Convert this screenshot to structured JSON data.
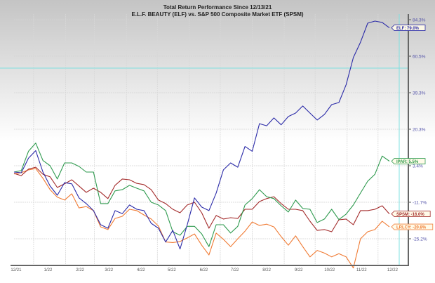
{
  "chart_data": {
    "type": "line",
    "title": "Total Return Performance Since 12/13/21",
    "subtitle": "E.L.F. BEAUTY (ELF)   vs.  S&P 500 Composite Market ETF (SPSM)",
    "y_scale": "nonlinear (evenly spaced ticks)",
    "y_ticks": [
      84.3,
      60.5,
      39.3,
      20.3,
      3.4,
      -11.7,
      -25.2
    ],
    "y_tick_labels": [
      "84.3%",
      "60.5%",
      "39.3%",
      "20.3%",
      "3.4%",
      "-11.7%",
      "-25.2%"
    ],
    "y_axis_side": "right",
    "x_tick_labels": [
      "12/21",
      "1/22",
      "2/22",
      "3/22",
      "4/22",
      "5/22",
      "6/22",
      "7/22",
      "8/22",
      "9/22",
      "10/22",
      "11/22",
      "12/22"
    ],
    "x_tick_months": [
      "2021-12",
      "2022-01",
      "2022-02",
      "2022-03",
      "2022-04",
      "2022-05",
      "2022-06",
      "2022-07",
      "2022-08",
      "2022-09",
      "2022-10",
      "2022-11",
      "2022-12"
    ],
    "grid": true,
    "legend": "end-of-line labels",
    "x": [
      "2021-12-13",
      "2021-12-20",
      "2021-12-27",
      "2022-01-03",
      "2022-01-10",
      "2022-01-17",
      "2022-01-24",
      "2022-01-31",
      "2022-02-07",
      "2022-02-14",
      "2022-02-21",
      "2022-02-28",
      "2022-03-07",
      "2022-03-14",
      "2022-03-21",
      "2022-03-28",
      "2022-04-04",
      "2022-04-11",
      "2022-04-18",
      "2022-04-25",
      "2022-05-02",
      "2022-05-09",
      "2022-05-16",
      "2022-05-23",
      "2022-05-30",
      "2022-06-06",
      "2022-06-13",
      "2022-06-20",
      "2022-06-27",
      "2022-07-04",
      "2022-07-11",
      "2022-07-18",
      "2022-07-25",
      "2022-08-01",
      "2022-08-08",
      "2022-08-15",
      "2022-08-22",
      "2022-08-29",
      "2022-09-05",
      "2022-09-12",
      "2022-09-19",
      "2022-09-26",
      "2022-10-03",
      "2022-10-10",
      "2022-10-17",
      "2022-10-24",
      "2022-10-31",
      "2022-11-07",
      "2022-11-14",
      "2022-11-21",
      "2022-11-28",
      "2022-12-05",
      "2022-12-12"
    ],
    "series": [
      {
        "name": "ELF",
        "label": "ELF: 79.0%",
        "color": "#2a2aa8",
        "values": [
          0.8,
          0.5,
          6.9,
          10.4,
          0.8,
          -5.0,
          -8.8,
          -3.6,
          -4.1,
          -9.9,
          -12.2,
          -14.8,
          -20.0,
          -21.3,
          -14.8,
          -15.9,
          -12.7,
          -14.3,
          -14.8,
          -19.5,
          -21.3,
          -26.4,
          -22.1,
          -29.0,
          -20.0,
          -9.9,
          -13.5,
          -14.8,
          -7.9,
          1.7,
          4.7,
          2.8,
          12.3,
          10.1,
          23.2,
          22.1,
          26.2,
          22.6,
          26.9,
          28.7,
          32.4,
          28.7,
          25.1,
          28.0,
          33.1,
          34.2,
          43.9,
          59.7,
          69.6,
          82.0,
          83.4,
          82.5,
          79.0
        ]
      },
      {
        "name": "IPAR",
        "label": "IPAR: 5.5%",
        "color": "#2e9a4e",
        "values": [
          0.8,
          1.4,
          10.1,
          13.9,
          5.8,
          3.4,
          -2.1,
          4.7,
          4.7,
          3.1,
          0.8,
          0.8,
          -12.2,
          -12.2,
          -7.0,
          -6.5,
          -4.7,
          -5.9,
          -7.0,
          -11.7,
          -12.7,
          -14.8,
          -22.6,
          -23.9,
          -20.6,
          -20.6,
          -23.4,
          -28.1,
          -20.0,
          -20.0,
          -23.1,
          -20.6,
          -12.7,
          -10.2,
          -6.5,
          -9.4,
          -10.2,
          -13.0,
          -15.3,
          -10.8,
          -14.0,
          -14.3,
          -19.2,
          -17.9,
          -14.3,
          -18.1,
          -16.1,
          -12.7,
          -7.9,
          -3.0,
          -0.1,
          7.9,
          5.5
        ]
      },
      {
        "name": "SPSM",
        "label": "SPSM: -16.0%",
        "color": "#a32a2a",
        "values": [
          0.2,
          -0.7,
          2.0,
          2.8,
          -0.1,
          -1.2,
          -5.6,
          -4.1,
          -2.4,
          -5.0,
          -7.6,
          -5.9,
          -7.6,
          -10.2,
          -4.7,
          -2.1,
          -2.4,
          -3.9,
          -4.4,
          -6.5,
          -10.8,
          -12.2,
          -14.3,
          -15.6,
          -12.7,
          -11.7,
          -15.6,
          -21.3,
          -16.6,
          -17.9,
          -17.4,
          -17.7,
          -14.3,
          -14.3,
          -11.4,
          -10.2,
          -9.4,
          -12.2,
          -14.3,
          -14.3,
          -14.8,
          -18.7,
          -22.1,
          -21.8,
          -22.6,
          -18.2,
          -17.9,
          -20.0,
          -14.8,
          -14.8,
          -14.3,
          -13.0,
          -16.0
        ]
      },
      {
        "name": "LRLCY",
        "label": "LRLCY: -20.8%",
        "color": "#f07a32",
        "values": [
          0.0,
          0.5,
          1.7,
          2.2,
          -1.8,
          -6.5,
          -9.6,
          -10.8,
          -8.2,
          -13.8,
          -13.3,
          -14.8,
          -20.8,
          -21.8,
          -17.7,
          -16.9,
          -14.3,
          -14.8,
          -16.4,
          -17.9,
          -20.5,
          -26.4,
          -26.6,
          -26.2,
          -24.9,
          -23.4,
          -27.6,
          -31.2,
          -23.1,
          -25.4,
          -28.1,
          -25.2,
          -22.4,
          -19.0,
          -20.3,
          -19.8,
          -20.8,
          -24.4,
          -27.6,
          -24.1,
          -28.1,
          -31.9,
          -29.5,
          -30.5,
          -31.9,
          -30.7,
          -31.9,
          -36.0,
          -25.2,
          -22.6,
          -21.8,
          -18.7,
          -20.8
        ]
      }
    ],
    "reference_lines": {
      "color": "#7fe0e0"
    }
  }
}
